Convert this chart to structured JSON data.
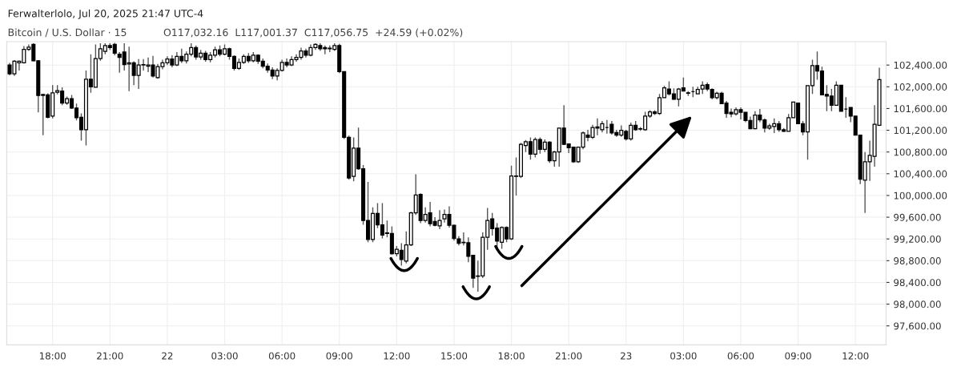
{
  "chart_data": {
    "type": "candlestick",
    "title": "Ferwalterlolo, Jul 20, 2025 21:47 UTC-4",
    "subtitle": "Bitcoin / U.S. Dollar · 15",
    "annotations": [
      "O117,032.16  L117,001.37  C117,056.75  +24.59 (+0.02%)"
    ],
    "x": [
      "2025-07-21T15:45",
      "2025-07-21T16:00",
      "2025-07-21T16:15",
      "2025-07-21T16:30",
      "2025-07-21T16:45",
      "2025-07-21T17:00",
      "2025-07-21T17:15",
      "2025-07-21T17:30",
      "2025-07-21T17:45",
      "2025-07-21T18:00",
      "2025-07-21T18:15",
      "2025-07-21T18:30",
      "2025-07-21T18:45",
      "2025-07-21T19:00",
      "2025-07-21T19:15",
      "2025-07-21T19:30",
      "2025-07-21T19:45",
      "2025-07-21T20:00",
      "2025-07-21T20:15",
      "2025-07-21T20:30",
      "2025-07-21T20:45",
      "2025-07-21T21:00",
      "2025-07-21T21:15",
      "2025-07-21T21:30",
      "2025-07-21T21:45",
      "2025-07-21T22:00",
      "2025-07-21T22:15",
      "2025-07-21T22:30",
      "2025-07-21T22:45",
      "2025-07-21T23:00",
      "2025-07-21T23:15",
      "2025-07-21T23:30",
      "2025-07-21T23:45",
      "2025-07-22T00:00",
      "2025-07-22T00:15",
      "2025-07-22T00:30",
      "2025-07-22T00:45",
      "2025-07-22T01:00",
      "2025-07-22T01:15",
      "2025-07-22T01:30",
      "2025-07-22T01:45",
      "2025-07-22T02:00",
      "2025-07-22T02:15",
      "2025-07-22T02:30",
      "2025-07-22T02:45",
      "2025-07-22T03:00",
      "2025-07-22T03:15",
      "2025-07-22T03:30",
      "2025-07-22T03:45",
      "2025-07-22T04:00",
      "2025-07-22T04:15",
      "2025-07-22T04:30",
      "2025-07-22T04:45",
      "2025-07-22T05:00",
      "2025-07-22T05:15",
      "2025-07-22T05:30",
      "2025-07-22T05:45",
      "2025-07-22T06:00",
      "2025-07-22T06:15",
      "2025-07-22T06:30",
      "2025-07-22T06:45",
      "2025-07-22T07:00",
      "2025-07-22T07:15",
      "2025-07-22T07:30",
      "2025-07-22T07:45",
      "2025-07-22T08:00",
      "2025-07-22T08:15",
      "2025-07-22T08:30",
      "2025-07-22T08:45",
      "2025-07-22T09:00",
      "2025-07-22T09:15",
      "2025-07-22T09:30",
      "2025-07-22T09:45",
      "2025-07-22T10:00",
      "2025-07-22T10:15",
      "2025-07-22T10:30",
      "2025-07-22T10:45",
      "2025-07-22T11:00",
      "2025-07-22T11:15",
      "2025-07-22T11:30",
      "2025-07-22T11:45",
      "2025-07-22T12:00",
      "2025-07-22T12:15",
      "2025-07-22T12:30",
      "2025-07-22T12:45",
      "2025-07-22T13:00",
      "2025-07-22T13:15",
      "2025-07-22T13:30",
      "2025-07-22T13:45",
      "2025-07-22T14:00",
      "2025-07-22T14:15",
      "2025-07-22T14:30",
      "2025-07-22T14:45",
      "2025-07-22T15:00",
      "2025-07-22T15:15",
      "2025-07-22T15:30",
      "2025-07-22T15:45",
      "2025-07-22T16:00",
      "2025-07-22T16:15",
      "2025-07-22T16:30",
      "2025-07-22T16:45",
      "2025-07-22T17:00",
      "2025-07-22T17:15",
      "2025-07-22T17:30",
      "2025-07-22T17:45",
      "2025-07-22T18:00",
      "2025-07-22T18:15",
      "2025-07-22T18:30",
      "2025-07-22T18:45",
      "2025-07-22T19:00",
      "2025-07-22T19:15",
      "2025-07-22T19:30",
      "2025-07-22T19:45",
      "2025-07-22T20:00",
      "2025-07-22T20:15",
      "2025-07-22T20:30",
      "2025-07-22T20:45",
      "2025-07-22T21:00",
      "2025-07-22T21:15",
      "2025-07-22T21:30",
      "2025-07-22T21:45",
      "2025-07-22T22:00",
      "2025-07-22T22:15",
      "2025-07-22T22:30",
      "2025-07-22T22:45",
      "2025-07-22T23:00",
      "2025-07-22T23:15",
      "2025-07-22T23:30",
      "2025-07-22T23:45",
      "2025-07-23T00:00",
      "2025-07-23T00:15",
      "2025-07-23T00:30",
      "2025-07-23T00:45",
      "2025-07-23T01:00",
      "2025-07-23T01:15",
      "2025-07-23T01:30",
      "2025-07-23T01:45",
      "2025-07-23T02:00",
      "2025-07-23T02:15",
      "2025-07-23T02:30",
      "2025-07-23T02:45",
      "2025-07-23T03:00",
      "2025-07-23T03:15",
      "2025-07-23T03:30",
      "2025-07-23T03:45",
      "2025-07-23T04:00",
      "2025-07-23T04:15",
      "2025-07-23T04:30",
      "2025-07-23T04:45",
      "2025-07-23T05:00",
      "2025-07-23T05:15",
      "2025-07-23T05:30",
      "2025-07-23T05:45",
      "2025-07-23T06:00",
      "2025-07-23T06:15",
      "2025-07-23T06:30",
      "2025-07-23T06:45",
      "2025-07-23T07:00",
      "2025-07-23T07:15",
      "2025-07-23T07:30",
      "2025-07-23T07:45",
      "2025-07-23T08:00",
      "2025-07-23T08:15",
      "2025-07-23T08:30",
      "2025-07-23T08:45",
      "2025-07-23T09:00",
      "2025-07-23T09:15",
      "2025-07-23T09:30",
      "2025-07-23T09:45",
      "2025-07-23T10:00",
      "2025-07-23T10:15",
      "2025-07-23T10:30",
      "2025-07-23T10:45",
      "2025-07-23T11:00",
      "2025-07-23T11:15",
      "2025-07-23T11:30",
      "2025-07-23T11:45",
      "2025-07-23T12:00",
      "2025-07-23T12:15",
      "2025-07-23T12:30",
      "2025-07-23T12:45",
      "2025-07-23T13:00",
      "2025-07-23T13:15"
    ],
    "ohlc": [
      [
        102400,
        102440,
        102210,
        102240
      ],
      [
        102240,
        102490,
        102200,
        102470
      ],
      [
        102440,
        102480,
        102300,
        102470
      ],
      [
        102440,
        102750,
        102430,
        102690
      ],
      [
        102690,
        102780,
        102660,
        102730
      ],
      [
        102780,
        102800,
        102470,
        102480
      ],
      [
        102480,
        102490,
        101530,
        101840
      ],
      [
        101840,
        101870,
        101110,
        101860
      ],
      [
        101850,
        101880,
        101420,
        101440
      ],
      [
        101460,
        102030,
        101420,
        101890
      ],
      [
        101900,
        102030,
        101860,
        101930
      ],
      [
        101920,
        101990,
        101660,
        101700
      ],
      [
        101700,
        101820,
        101670,
        101780
      ],
      [
        101780,
        101850,
        101590,
        101610
      ],
      [
        101610,
        101690,
        101380,
        101430
      ],
      [
        101440,
        101510,
        101010,
        101210
      ],
      [
        101210,
        102300,
        100920,
        102140
      ],
      [
        102140,
        102600,
        101890,
        102000
      ],
      [
        101990,
        102780,
        101990,
        102520
      ],
      [
        102520,
        102800,
        102480,
        102700
      ],
      [
        102650,
        102800,
        102600,
        102760
      ],
      [
        102760,
        102800,
        102680,
        102720
      ],
      [
        102780,
        102810,
        102580,
        102620
      ],
      [
        102600,
        102640,
        102260,
        102540
      ],
      [
        102640,
        102800,
        102300,
        102410
      ],
      [
        102420,
        102740,
        101920,
        102440
      ],
      [
        102440,
        102470,
        102030,
        102210
      ],
      [
        102210,
        102510,
        101960,
        102400
      ],
      [
        102400,
        102510,
        102300,
        102410
      ],
      [
        102380,
        102540,
        102270,
        102400
      ],
      [
        102400,
        102570,
        102170,
        102200
      ],
      [
        102170,
        102420,
        102150,
        102370
      ],
      [
        102370,
        102500,
        102320,
        102440
      ],
      [
        102440,
        102560,
        102400,
        102510
      ],
      [
        102510,
        102580,
        102360,
        102400
      ],
      [
        102400,
        102640,
        102380,
        102560
      ],
      [
        102560,
        102700,
        102440,
        102480
      ],
      [
        102480,
        102650,
        102430,
        102600
      ],
      [
        102600,
        102800,
        102560,
        102720
      ],
      [
        102720,
        102760,
        102500,
        102550
      ],
      [
        102550,
        102680,
        102500,
        102620
      ],
      [
        102620,
        102660,
        102460,
        102500
      ],
      [
        102500,
        102640,
        102450,
        102580
      ],
      [
        102580,
        102740,
        102540,
        102680
      ],
      [
        102680,
        102760,
        102560,
        102600
      ],
      [
        102600,
        102780,
        102580,
        102700
      ],
      [
        102700,
        102720,
        102500,
        102560
      ],
      [
        102560,
        102580,
        102300,
        102340
      ],
      [
        102340,
        102520,
        102310,
        102450
      ],
      [
        102450,
        102600,
        102420,
        102560
      ],
      [
        102560,
        102620,
        102440,
        102480
      ],
      [
        102480,
        102640,
        102450,
        102580
      ],
      [
        102580,
        102600,
        102420,
        102470
      ],
      [
        102470,
        102520,
        102340,
        102380
      ],
      [
        102380,
        102430,
        102260,
        102310
      ],
      [
        102310,
        102360,
        102140,
        102200
      ],
      [
        102200,
        102340,
        102120,
        102300
      ],
      [
        102300,
        102500,
        102280,
        102450
      ],
      [
        102450,
        102520,
        102360,
        102400
      ],
      [
        102400,
        102560,
        102380,
        102500
      ],
      [
        102500,
        102600,
        102460,
        102540
      ],
      [
        102540,
        102720,
        102500,
        102660
      ],
      [
        102660,
        102700,
        102540,
        102580
      ],
      [
        102580,
        102780,
        102560,
        102720
      ],
      [
        102720,
        102800,
        102680,
        102780
      ],
      [
        102760,
        102800,
        102660,
        102700
      ],
      [
        102720,
        102760,
        102600,
        102700
      ],
      [
        102700,
        102760,
        102640,
        102710
      ],
      [
        102690,
        102800,
        102660,
        102760
      ],
      [
        102760,
        102790,
        102250,
        102280
      ],
      [
        102280,
        102280,
        101040,
        101070
      ],
      [
        101070,
        101100,
        100290,
        100320
      ],
      [
        100350,
        101070,
        100260,
        100870
      ],
      [
        100870,
        101250,
        100470,
        100490
      ],
      [
        100490,
        100560,
        99460,
        99540
      ],
      [
        99540,
        100250,
        99140,
        99190
      ],
      [
        99190,
        99780,
        99140,
        99670
      ],
      [
        99670,
        99860,
        99400,
        99460
      ],
      [
        99460,
        99860,
        99210,
        99270
      ],
      [
        99300,
        99540,
        99230,
        99310
      ],
      [
        99300,
        99430,
        98910,
        98930
      ],
      [
        98930,
        99070,
        98880,
        99010
      ],
      [
        98990,
        99120,
        98710,
        98820
      ],
      [
        98790,
        99340,
        98750,
        99090
      ],
      [
        99090,
        99700,
        99070,
        99680
      ],
      [
        99680,
        100390,
        99640,
        100010
      ],
      [
        100020,
        100040,
        99490,
        99540
      ],
      [
        99540,
        99780,
        99500,
        99650
      ],
      [
        99680,
        99880,
        99430,
        99480
      ],
      [
        99520,
        99600,
        99430,
        99450
      ],
      [
        99440,
        99730,
        99380,
        99540
      ],
      [
        99570,
        99740,
        99500,
        99650
      ],
      [
        99650,
        99800,
        99410,
        99450
      ],
      [
        99450,
        99460,
        99170,
        99210
      ],
      [
        99200,
        99250,
        99080,
        99120
      ],
      [
        99130,
        99320,
        99080,
        99140
      ],
      [
        99130,
        99230,
        98770,
        98880
      ],
      [
        98900,
        98900,
        98300,
        98480
      ],
      [
        98510,
        98800,
        98230,
        98520
      ],
      [
        98520,
        99320,
        98480,
        99230
      ],
      [
        99230,
        99770,
        99000,
        99540
      ],
      [
        99570,
        99680,
        99260,
        99390
      ],
      [
        99400,
        99490,
        99020,
        99160
      ],
      [
        99140,
        99430,
        99020,
        99410
      ],
      [
        99410,
        99430,
        99140,
        99200
      ],
      [
        99200,
        100550,
        99180,
        100360
      ],
      [
        100350,
        100700,
        100000,
        100360
      ],
      [
        100350,
        100970,
        100320,
        100940
      ],
      [
        100920,
        101020,
        100800,
        100990
      ],
      [
        100990,
        101070,
        100660,
        100760
      ],
      [
        100760,
        101070,
        100700,
        101030
      ],
      [
        101030,
        101070,
        100770,
        100850
      ],
      [
        100850,
        101030,
        100800,
        100980
      ],
      [
        100980,
        101000,
        100600,
        100640
      ],
      [
        100640,
        100820,
        100530,
        100800
      ],
      [
        100800,
        101240,
        100530,
        101240
      ],
      [
        101240,
        101660,
        100930,
        100940
      ],
      [
        100950,
        100950,
        100780,
        100880
      ],
      [
        100890,
        100890,
        100600,
        100620
      ],
      [
        100620,
        100890,
        100600,
        100890
      ],
      [
        100890,
        101180,
        100850,
        101150
      ],
      [
        101110,
        101210,
        101000,
        101070
      ],
      [
        101070,
        101300,
        101040,
        101250
      ],
      [
        101260,
        101420,
        101110,
        101240
      ],
      [
        101210,
        101370,
        101160,
        101320
      ],
      [
        101250,
        101390,
        101140,
        101250
      ],
      [
        101310,
        101370,
        101120,
        101150
      ],
      [
        101160,
        101210,
        101080,
        101110
      ],
      [
        101110,
        101290,
        101080,
        101200
      ],
      [
        101180,
        101210,
        101010,
        101040
      ],
      [
        101040,
        101340,
        101010,
        101290
      ],
      [
        101290,
        101370,
        101190,
        101210
      ],
      [
        101220,
        101260,
        101190,
        101230
      ],
      [
        101210,
        101540,
        101190,
        101460
      ],
      [
        101460,
        101570,
        101430,
        101540
      ],
      [
        101540,
        101570,
        101480,
        101510
      ],
      [
        101510,
        101870,
        101480,
        101800
      ],
      [
        101800,
        102020,
        101800,
        101980
      ],
      [
        101960,
        102100,
        101840,
        101870
      ],
      [
        101870,
        101970,
        101760,
        101770
      ],
      [
        101770,
        101980,
        101640,
        101960
      ],
      [
        101980,
        102170,
        101920,
        101920
      ],
      [
        101890,
        101920,
        101830,
        101880
      ],
      [
        101910,
        102000,
        101810,
        101910
      ],
      [
        101870,
        102000,
        101870,
        101950
      ],
      [
        101960,
        102100,
        101870,
        102030
      ],
      [
        102040,
        102080,
        101920,
        101960
      ],
      [
        101950,
        101970,
        101770,
        101800
      ],
      [
        101800,
        101910,
        101770,
        101880
      ],
      [
        101880,
        101910,
        101680,
        101690
      ],
      [
        101700,
        101740,
        101430,
        101510
      ],
      [
        101530,
        101600,
        101440,
        101500
      ],
      [
        101500,
        101620,
        101470,
        101580
      ],
      [
        101580,
        101620,
        101400,
        101530
      ],
      [
        101530,
        101530,
        101350,
        101380
      ],
      [
        101380,
        101450,
        101220,
        101230
      ],
      [
        101230,
        101550,
        101220,
        101480
      ],
      [
        101480,
        101590,
        101350,
        101390
      ],
      [
        101390,
        101420,
        101160,
        101240
      ],
      [
        101240,
        101320,
        101210,
        101280
      ],
      [
        101270,
        101420,
        101150,
        101320
      ],
      [
        101320,
        101370,
        101170,
        101210
      ],
      [
        101210,
        101240,
        101170,
        101180
      ],
      [
        101180,
        101500,
        101180,
        101430
      ],
      [
        101430,
        101720,
        101430,
        101720
      ],
      [
        101700,
        101700,
        101320,
        101320
      ],
      [
        101320,
        101370,
        101110,
        101170
      ],
      [
        101170,
        102020,
        100660,
        102020
      ],
      [
        102020,
        102500,
        101870,
        102390
      ],
      [
        102390,
        102650,
        102130,
        102290
      ],
      [
        102290,
        102370,
        101850,
        101850
      ],
      [
        101860,
        102030,
        101550,
        101830
      ],
      [
        101830,
        101960,
        101550,
        101660
      ],
      [
        101660,
        102100,
        101660,
        102030
      ],
      [
        102030,
        102030,
        101550,
        101550
      ],
      [
        101590,
        101810,
        101430,
        101590
      ],
      [
        101620,
        101620,
        101350,
        101460
      ],
      [
        101460,
        101460,
        101110,
        101110
      ],
      [
        101110,
        101110,
        100210,
        100300
      ],
      [
        100280,
        100800,
        99680,
        100620
      ],
      [
        100620,
        101010,
        100270,
        100740
      ],
      [
        100720,
        101660,
        100530,
        101310
      ],
      [
        101290,
        102350,
        101280,
        102130
      ]
    ],
    "xlim": [
      "2025-07-21T15:36",
      "2025-07-23T13:36"
    ],
    "ylim": [
      97250,
      102830
    ],
    "xticks": [
      {
        "value": "2025-07-21T18:00",
        "label": "18:00"
      },
      {
        "value": "2025-07-21T21:00",
        "label": "21:00"
      },
      {
        "value": "2025-07-22T00:00",
        "label": "22"
      },
      {
        "value": "2025-07-22T03:00",
        "label": "03:00"
      },
      {
        "value": "2025-07-22T06:00",
        "label": "06:00"
      },
      {
        "value": "2025-07-22T09:00",
        "label": "09:00"
      },
      {
        "value": "2025-07-22T12:00",
        "label": "12:00"
      },
      {
        "value": "2025-07-22T15:00",
        "label": "15:00"
      },
      {
        "value": "2025-07-22T18:00",
        "label": "18:00"
      },
      {
        "value": "2025-07-22T21:00",
        "label": "21:00"
      },
      {
        "value": "2025-07-23T00:00",
        "label": "23"
      },
      {
        "value": "2025-07-23T03:00",
        "label": "03:00"
      },
      {
        "value": "2025-07-23T06:00",
        "label": "06:00"
      },
      {
        "value": "2025-07-23T09:00",
        "label": "09:00"
      },
      {
        "value": "2025-07-23T12:00",
        "label": "12:00"
      }
    ],
    "yticks": [
      {
        "value": 97600,
        "label": "97,600.00"
      },
      {
        "value": 98000,
        "label": "98,000.00"
      },
      {
        "value": 98400,
        "label": "98,400.00"
      },
      {
        "value": 98800,
        "label": "98,800.00"
      },
      {
        "value": 99200,
        "label": "99,200.00"
      },
      {
        "value": 99600,
        "label": "99,600.00"
      },
      {
        "value": 100000,
        "label": "100,000.00"
      },
      {
        "value": 100400,
        "label": "100,400.00"
      },
      {
        "value": 100800,
        "label": "100,800.00"
      },
      {
        "value": 101200,
        "label": "101,200.00"
      },
      {
        "value": 101600,
        "label": "101,600.00"
      },
      {
        "value": 102000,
        "label": "102,000.00"
      },
      {
        "value": 102400,
        "label": "102,400.00"
      }
    ],
    "grid": true
  }
}
